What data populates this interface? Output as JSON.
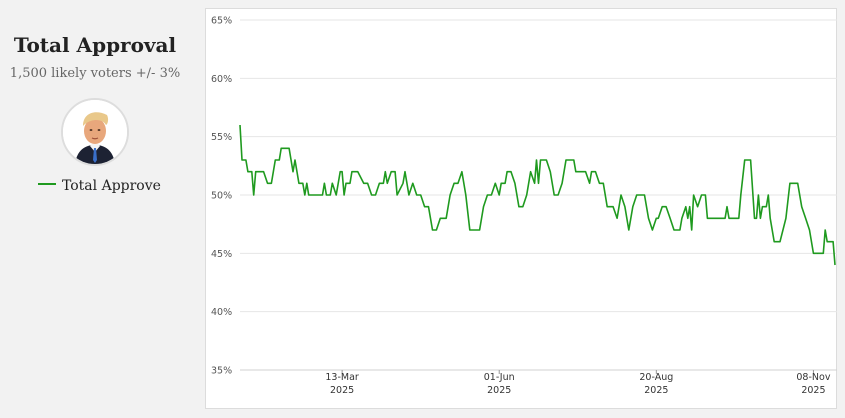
{
  "header": {
    "title": "Total Approval",
    "subtitle": "1,500 likely voters +/- 3%"
  },
  "legend": {
    "label": "Total Approve",
    "color": "#1f9a1f"
  },
  "avatar": {
    "icon": "person-portrait-icon"
  },
  "chart_data": {
    "type": "line",
    "title": "Total Approval",
    "xlabel": "",
    "ylabel": "",
    "ylim": [
      35,
      65
    ],
    "grid": true,
    "y_ticks": [
      "35%",
      "40%",
      "45%",
      "50%",
      "55%",
      "60%",
      "65%"
    ],
    "x_ticks": [
      {
        "date": "2025-03-13",
        "line1": "13-Mar",
        "line2": "2025"
      },
      {
        "date": "2025-06-01",
        "line1": "01-Jun",
        "line2": "2025"
      },
      {
        "date": "2025-08-20",
        "line1": "20-Aug",
        "line2": "2025"
      },
      {
        "date": "2025-11-08",
        "line1": "08-Nov",
        "line2": "2025"
      }
    ],
    "xlim": [
      "2025-01-20",
      "2025-11-20"
    ],
    "series": [
      {
        "name": "Total Approve",
        "color": "#1f9a1f",
        "points": [
          [
            "2025-01-20",
            56
          ],
          [
            "2025-01-21",
            53
          ],
          [
            "2025-01-23",
            53
          ],
          [
            "2025-01-24",
            52
          ],
          [
            "2025-01-26",
            52
          ],
          [
            "2025-01-27",
            50
          ],
          [
            "2025-01-28",
            52
          ],
          [
            "2025-02-01",
            52
          ],
          [
            "2025-02-03",
            51
          ],
          [
            "2025-02-05",
            51
          ],
          [
            "2025-02-07",
            53
          ],
          [
            "2025-02-09",
            53
          ],
          [
            "2025-02-10",
            54
          ],
          [
            "2025-02-14",
            54
          ],
          [
            "2025-02-16",
            52
          ],
          [
            "2025-02-17",
            53
          ],
          [
            "2025-02-19",
            51
          ],
          [
            "2025-02-21",
            51
          ],
          [
            "2025-02-22",
            50
          ],
          [
            "2025-02-23",
            51
          ],
          [
            "2025-02-24",
            50
          ],
          [
            "2025-02-26",
            50
          ],
          [
            "2025-03-03",
            50
          ],
          [
            "2025-03-04",
            51
          ],
          [
            "2025-03-05",
            50
          ],
          [
            "2025-03-07",
            50
          ],
          [
            "2025-03-08",
            51
          ],
          [
            "2025-03-10",
            50
          ],
          [
            "2025-03-12",
            52
          ],
          [
            "2025-03-13",
            52
          ],
          [
            "2025-03-14",
            50
          ],
          [
            "2025-03-15",
            51
          ],
          [
            "2025-03-17",
            51
          ],
          [
            "2025-03-18",
            52
          ],
          [
            "2025-03-21",
            52
          ],
          [
            "2025-03-24",
            51
          ],
          [
            "2025-03-26",
            51
          ],
          [
            "2025-03-28",
            50
          ],
          [
            "2025-03-30",
            50
          ],
          [
            "2025-04-01",
            51
          ],
          [
            "2025-04-03",
            51
          ],
          [
            "2025-04-04",
            52
          ],
          [
            "2025-04-05",
            51
          ],
          [
            "2025-04-07",
            52
          ],
          [
            "2025-04-09",
            52
          ],
          [
            "2025-04-10",
            50
          ],
          [
            "2025-04-13",
            51
          ],
          [
            "2025-04-14",
            52
          ],
          [
            "2025-04-16",
            50
          ],
          [
            "2025-04-18",
            51
          ],
          [
            "2025-04-20",
            50
          ],
          [
            "2025-04-22",
            50
          ],
          [
            "2025-04-24",
            49
          ],
          [
            "2025-04-26",
            49
          ],
          [
            "2025-04-28",
            47
          ],
          [
            "2025-04-30",
            47
          ],
          [
            "2025-05-02",
            48
          ],
          [
            "2025-05-05",
            48
          ],
          [
            "2025-05-07",
            50
          ],
          [
            "2025-05-09",
            51
          ],
          [
            "2025-05-11",
            51
          ],
          [
            "2025-05-13",
            52
          ],
          [
            "2025-05-15",
            50
          ],
          [
            "2025-05-17",
            47
          ],
          [
            "2025-05-22",
            47
          ],
          [
            "2025-05-24",
            49
          ],
          [
            "2025-05-26",
            50
          ],
          [
            "2025-05-28",
            50
          ],
          [
            "2025-05-30",
            51
          ],
          [
            "2025-06-01",
            50
          ],
          [
            "2025-06-02",
            51
          ],
          [
            "2025-06-04",
            51
          ],
          [
            "2025-06-05",
            52
          ],
          [
            "2025-06-07",
            52
          ],
          [
            "2025-06-09",
            51
          ],
          [
            "2025-06-11",
            49
          ],
          [
            "2025-06-13",
            49
          ],
          [
            "2025-06-15",
            50
          ],
          [
            "2025-06-17",
            52
          ],
          [
            "2025-06-19",
            51
          ],
          [
            "2025-06-20",
            53
          ],
          [
            "2025-06-21",
            51
          ],
          [
            "2025-06-22",
            53
          ],
          [
            "2025-06-25",
            53
          ],
          [
            "2025-06-27",
            52
          ],
          [
            "2025-06-29",
            50
          ],
          [
            "2025-07-01",
            50
          ],
          [
            "2025-07-03",
            51
          ],
          [
            "2025-07-05",
            53
          ],
          [
            "2025-07-09",
            53
          ],
          [
            "2025-07-10",
            52
          ],
          [
            "2025-07-15",
            52
          ],
          [
            "2025-07-17",
            51
          ],
          [
            "2025-07-18",
            52
          ],
          [
            "2025-07-20",
            52
          ],
          [
            "2025-07-22",
            51
          ],
          [
            "2025-07-24",
            51
          ],
          [
            "2025-07-26",
            49
          ],
          [
            "2025-07-29",
            49
          ],
          [
            "2025-07-31",
            48
          ],
          [
            "2025-08-02",
            50
          ],
          [
            "2025-08-04",
            49
          ],
          [
            "2025-08-06",
            47
          ],
          [
            "2025-08-08",
            49
          ],
          [
            "2025-08-10",
            50
          ],
          [
            "2025-08-14",
            50
          ],
          [
            "2025-08-16",
            48
          ],
          [
            "2025-08-18",
            47
          ],
          [
            "2025-08-20",
            48
          ],
          [
            "2025-08-21",
            48
          ],
          [
            "2025-08-23",
            49
          ],
          [
            "2025-08-25",
            49
          ],
          [
            "2025-08-27",
            48
          ],
          [
            "2025-08-29",
            47
          ],
          [
            "2025-09-01",
            47
          ],
          [
            "2025-09-02",
            48
          ],
          [
            "2025-09-04",
            49
          ],
          [
            "2025-09-05",
            48
          ],
          [
            "2025-09-06",
            49
          ],
          [
            "2025-09-07",
            47
          ],
          [
            "2025-09-08",
            50
          ],
          [
            "2025-09-10",
            49
          ],
          [
            "2025-09-12",
            50
          ],
          [
            "2025-09-14",
            50
          ],
          [
            "2025-09-15",
            48
          ],
          [
            "2025-09-20",
            48
          ],
          [
            "2025-09-24",
            48
          ],
          [
            "2025-09-25",
            49
          ],
          [
            "2025-09-26",
            48
          ],
          [
            "2025-10-01",
            48
          ],
          [
            "2025-10-02",
            50
          ],
          [
            "2025-10-04",
            53
          ],
          [
            "2025-10-07",
            53
          ],
          [
            "2025-10-09",
            48
          ],
          [
            "2025-10-10",
            48
          ],
          [
            "2025-10-11",
            50
          ],
          [
            "2025-10-12",
            48
          ],
          [
            "2025-10-13",
            49
          ],
          [
            "2025-10-15",
            49
          ],
          [
            "2025-10-16",
            50
          ],
          [
            "2025-10-17",
            48
          ],
          [
            "2025-10-19",
            46
          ],
          [
            "2025-10-22",
            46
          ],
          [
            "2025-10-25",
            48
          ],
          [
            "2025-10-27",
            51
          ],
          [
            "2025-10-31",
            51
          ],
          [
            "2025-11-02",
            49
          ],
          [
            "2025-11-04",
            48
          ],
          [
            "2025-11-06",
            47
          ],
          [
            "2025-11-08",
            45
          ],
          [
            "2025-11-13",
            45
          ],
          [
            "2025-11-14",
            47
          ],
          [
            "2025-11-15",
            46
          ],
          [
            "2025-11-18",
            46
          ],
          [
            "2025-11-19",
            44
          ]
        ]
      }
    ]
  }
}
